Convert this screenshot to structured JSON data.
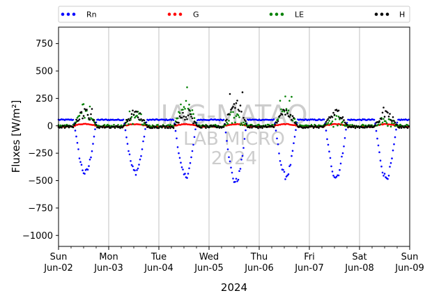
{
  "chart_data": {
    "type": "scatter",
    "title": "",
    "xlabel": "2024",
    "ylabel": "Fluxes [W/m²]",
    "ylim": [
      -1100,
      900
    ],
    "y_ticks": [
      750,
      500,
      250,
      0,
      -250,
      -500,
      -750,
      -1000
    ],
    "x_range": [
      "2024-06-02",
      "2024-06-09"
    ],
    "x_ticks": [
      {
        "day": "Sun",
        "date": "Jun-02"
      },
      {
        "day": "Mon",
        "date": "Jun-03"
      },
      {
        "day": "Tue",
        "date": "Jun-04"
      },
      {
        "day": "Wed",
        "date": "Jun-05"
      },
      {
        "day": "Thu",
        "date": "Jun-06"
      },
      {
        "day": "Fri",
        "date": "Jun-07"
      },
      {
        "day": "Sat",
        "date": "Jun-08"
      },
      {
        "day": "Sun",
        "date": "Jun-09"
      }
    ],
    "grid": "vertical",
    "legend_placement": "top",
    "watermark": [
      "IAG-MATAO",
      "LAB MICRO",
      "2024"
    ],
    "series": [
      {
        "name": "Rn",
        "color": "#0000ff",
        "daily_min": [
          -430,
          -420,
          -460,
          -510,
          -460,
          -465,
          -470
        ],
        "night_value": 55
      },
      {
        "name": "G",
        "color": "#ff0000",
        "daily_min": [
          -10,
          -10,
          -10,
          -12,
          -10,
          -10,
          -10
        ],
        "daily_max": [
          18,
          15,
          15,
          15,
          15,
          15,
          15
        ],
        "night_value": -8
      },
      {
        "name": "LE",
        "color": "#008000",
        "daily_peak": [
          230,
          150,
          420,
          130,
          300,
          100,
          90
        ],
        "night_value": 0
      },
      {
        "name": "H",
        "color": "#000000",
        "daily_peak": [
          190,
          180,
          150,
          320,
          200,
          185,
          170
        ],
        "night_value": -10
      }
    ]
  }
}
